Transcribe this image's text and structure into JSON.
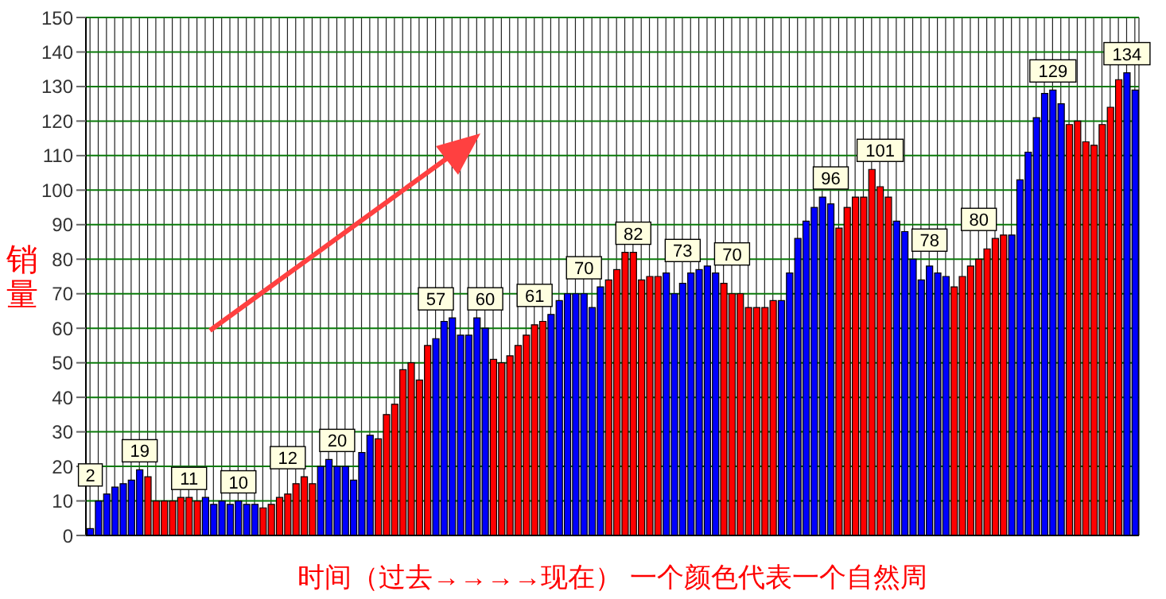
{
  "chart_data": {
    "type": "bar",
    "xlabel": "时间（过去→→→→现在） 一个颜色代表一个自然周",
    "ylabel": "销量",
    "categories": [
      null,
      null,
      null,
      null,
      null,
      null,
      null,
      null,
      null,
      null,
      null,
      null,
      null,
      null,
      null,
      null,
      null,
      null,
      null,
      null,
      null,
      null,
      null,
      null,
      null,
      null,
      null,
      null,
      null,
      null,
      null,
      null,
      null,
      null,
      null,
      null,
      null,
      null,
      null,
      null,
      null,
      null,
      null,
      null,
      null,
      null,
      null,
      null,
      null,
      null,
      null,
      null,
      null,
      null,
      null,
      null,
      null,
      null,
      null,
      null,
      null,
      null,
      null,
      null,
      null,
      null,
      null,
      null,
      null,
      null,
      null,
      null,
      null,
      null,
      null,
      null,
      null,
      null,
      null,
      null,
      null,
      null,
      null,
      null,
      null,
      null,
      null,
      null,
      null,
      null,
      null,
      null,
      null,
      null,
      null,
      null,
      null,
      null,
      null,
      null,
      null,
      null,
      null,
      null,
      null,
      null,
      null,
      null,
      null,
      null,
      null,
      null,
      null,
      null,
      null,
      null,
      null,
      null,
      null,
      null,
      null,
      null,
      null,
      null,
      null,
      null,
      null,
      null
    ],
    "values": [
      2,
      10,
      12,
      14,
      15,
      16,
      19,
      17,
      10,
      10,
      10,
      11,
      11,
      10,
      11,
      9,
      10,
      9,
      10,
      9,
      9,
      8,
      9,
      11,
      12,
      15,
      17,
      15,
      20,
      22,
      20,
      20,
      16,
      24,
      29,
      28,
      35,
      38,
      48,
      50,
      45,
      55,
      57,
      62,
      63,
      58,
      58,
      63,
      60,
      51,
      50,
      52,
      55,
      58,
      61,
      62,
      64,
      68,
      70,
      70,
      70,
      66,
      72,
      74,
      77,
      82,
      82,
      74,
      75,
      75,
      76,
      70,
      73,
      76,
      77,
      78,
      76,
      73,
      70,
      70,
      66,
      66,
      66,
      68,
      68,
      76,
      86,
      91,
      95,
      98,
      96,
      89,
      95,
      98,
      98,
      106,
      101,
      98,
      91,
      88,
      80,
      74,
      78,
      76,
      75,
      72,
      75,
      78,
      80,
      83,
      86,
      87,
      87,
      103,
      111,
      121,
      128,
      129,
      125,
      119,
      120,
      114,
      113,
      119,
      124,
      132,
      134,
      129
    ],
    "colors": [
      "#0000ff",
      "#0000ff",
      "#0000ff",
      "#0000ff",
      "#0000ff",
      "#0000ff",
      "#0000ff",
      "#ff0000",
      "#ff0000",
      "#ff0000",
      "#ff0000",
      "#ff0000",
      "#ff0000",
      "#ff0000",
      "#0000ff",
      "#0000ff",
      "#0000ff",
      "#0000ff",
      "#0000ff",
      "#0000ff",
      "#0000ff",
      "#ff0000",
      "#ff0000",
      "#ff0000",
      "#ff0000",
      "#ff0000",
      "#ff0000",
      "#ff0000",
      "#0000ff",
      "#0000ff",
      "#0000ff",
      "#0000ff",
      "#0000ff",
      "#0000ff",
      "#0000ff",
      "#ff0000",
      "#ff0000",
      "#ff0000",
      "#ff0000",
      "#ff0000",
      "#ff0000",
      "#ff0000",
      "#0000ff",
      "#0000ff",
      "#0000ff",
      "#0000ff",
      "#0000ff",
      "#0000ff",
      "#0000ff",
      "#ff0000",
      "#ff0000",
      "#ff0000",
      "#ff0000",
      "#ff0000",
      "#ff0000",
      "#ff0000",
      "#0000ff",
      "#0000ff",
      "#0000ff",
      "#0000ff",
      "#0000ff",
      "#0000ff",
      "#0000ff",
      "#ff0000",
      "#ff0000",
      "#ff0000",
      "#ff0000",
      "#ff0000",
      "#ff0000",
      "#ff0000",
      "#0000ff",
      "#0000ff",
      "#0000ff",
      "#0000ff",
      "#0000ff",
      "#0000ff",
      "#0000ff",
      "#ff0000",
      "#ff0000",
      "#ff0000",
      "#ff0000",
      "#ff0000",
      "#ff0000",
      "#ff0000",
      "#0000ff",
      "#0000ff",
      "#0000ff",
      "#0000ff",
      "#0000ff",
      "#0000ff",
      "#0000ff",
      "#ff0000",
      "#ff0000",
      "#ff0000",
      "#ff0000",
      "#ff0000",
      "#ff0000",
      "#ff0000",
      "#0000ff",
      "#0000ff",
      "#0000ff",
      "#0000ff",
      "#0000ff",
      "#0000ff",
      "#0000ff",
      "#ff0000",
      "#ff0000",
      "#ff0000",
      "#ff0000",
      "#ff0000",
      "#ff0000",
      "#ff0000",
      "#0000ff",
      "#0000ff",
      "#0000ff",
      "#0000ff",
      "#0000ff",
      "#0000ff",
      "#0000ff",
      "#ff0000",
      "#ff0000",
      "#ff0000",
      "#ff0000",
      "#ff0000",
      "#ff0000",
      "#ff0000",
      "#0000ff",
      "#0000ff"
    ],
    "value_labels": [
      "2",
      null,
      null,
      null,
      null,
      null,
      "19",
      null,
      null,
      null,
      null,
      null,
      "11",
      null,
      null,
      null,
      null,
      null,
      "10",
      null,
      null,
      null,
      null,
      null,
      "12",
      null,
      null,
      null,
      null,
      null,
      "20",
      null,
      null,
      null,
      null,
      null,
      null,
      null,
      null,
      null,
      null,
      null,
      "57",
      null,
      null,
      null,
      null,
      null,
      "60",
      null,
      null,
      null,
      null,
      null,
      "61",
      null,
      null,
      null,
      null,
      null,
      "70",
      null,
      null,
      null,
      null,
      null,
      "82",
      null,
      null,
      null,
      null,
      null,
      "73",
      null,
      null,
      null,
      null,
      null,
      "70",
      null,
      null,
      null,
      null,
      null,
      null,
      null,
      null,
      null,
      null,
      null,
      "96",
      null,
      null,
      null,
      null,
      null,
      "101",
      null,
      null,
      null,
      null,
      null,
      "78",
      null,
      null,
      null,
      null,
      null,
      "80",
      null,
      null,
      null,
      null,
      null,
      null,
      null,
      null,
      "129",
      null,
      null,
      null,
      null,
      null,
      null,
      null,
      null,
      "134",
      null
    ],
    "ylim": [
      0,
      150
    ],
    "yticks": [
      0,
      10,
      20,
      30,
      40,
      50,
      60,
      70,
      80,
      90,
      100,
      110,
      120,
      130,
      140,
      150
    ],
    "grid": true
  }
}
